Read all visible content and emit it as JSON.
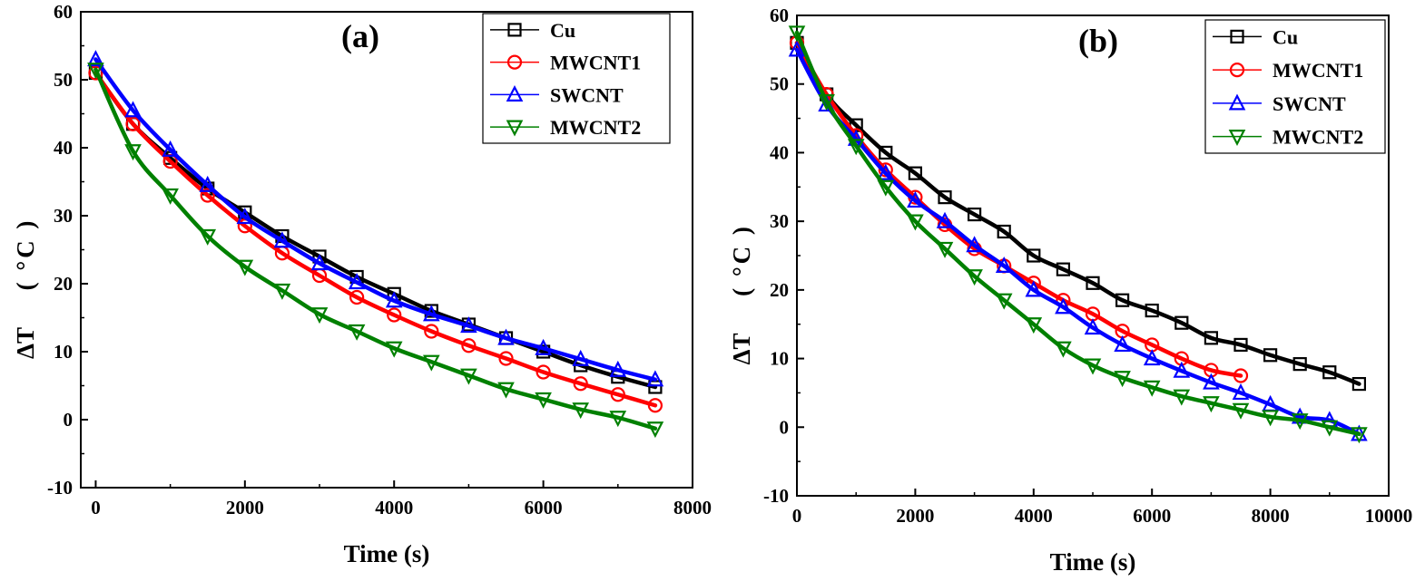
{
  "chart_data": [
    {
      "type": "line",
      "panel_label": "(a)",
      "xlabel": "Time (s)",
      "ylabel_main": "ΔT",
      "ylabel_unit": "( °C )",
      "xlim": [
        -200,
        8000
      ],
      "ylim": [
        -10,
        60
      ],
      "xticks": [
        0,
        2000,
        4000,
        6000,
        8000
      ],
      "yticks": [
        -10,
        0,
        10,
        20,
        30,
        40,
        50,
        60
      ],
      "legend_position": "top-right",
      "series": [
        {
          "name": "Cu",
          "color": "#000000",
          "marker": "square",
          "x": [
            0,
            500,
            1000,
            1500,
            2000,
            2500,
            3000,
            3500,
            4000,
            4500,
            5000,
            5500,
            6000,
            6500,
            7000,
            7500
          ],
          "y": [
            51,
            43.5,
            38.5,
            34,
            30.5,
            27,
            24,
            21,
            18.5,
            16,
            14,
            12,
            10,
            8,
            6.3,
            4.8
          ]
        },
        {
          "name": "MWCNT1",
          "color": "#ff0000",
          "marker": "circle",
          "x": [
            0,
            500,
            1000,
            1500,
            2000,
            2500,
            3000,
            3500,
            4000,
            4500,
            5000,
            5500,
            6000,
            6500,
            7000,
            7500
          ],
          "y": [
            51,
            43.5,
            38,
            33,
            28.5,
            24.5,
            21.2,
            18,
            15.4,
            13,
            10.9,
            9,
            7,
            5.3,
            3.7,
            2.1
          ]
        },
        {
          "name": "SWCNT",
          "color": "#0000ff",
          "marker": "triangle-up",
          "x": [
            0,
            500,
            1000,
            1500,
            2000,
            2500,
            3000,
            3500,
            4000,
            4500,
            5000,
            5500,
            6000,
            6500,
            7000,
            7500
          ],
          "y": [
            53,
            45.5,
            39.7,
            34.5,
            29.8,
            26.3,
            23,
            20.2,
            17.5,
            15.5,
            13.8,
            12,
            10.5,
            8.9,
            7.3,
            5.9
          ]
        },
        {
          "name": "MWCNT2",
          "color": "#008000",
          "marker": "triangle-down",
          "x": [
            0,
            500,
            1000,
            1500,
            2000,
            2500,
            3000,
            3500,
            4000,
            4500,
            5000,
            5500,
            6000,
            6500,
            7000,
            7500
          ],
          "y": [
            51.5,
            39.5,
            33,
            27,
            22.5,
            19,
            15.5,
            13,
            10.5,
            8.5,
            6.5,
            4.5,
            3,
            1.5,
            0.3,
            -1.3
          ]
        }
      ]
    },
    {
      "type": "line",
      "panel_label": "(b)",
      "xlabel": "Time  (s)",
      "ylabel_main": "ΔT",
      "ylabel_unit": "( °C )",
      "xlim": [
        0,
        10000
      ],
      "ylim": [
        -10,
        60
      ],
      "xticks": [
        0,
        2000,
        4000,
        6000,
        8000,
        10000
      ],
      "yticks": [
        -10,
        0,
        10,
        20,
        30,
        40,
        50,
        60
      ],
      "legend_position": "top-right",
      "series": [
        {
          "name": "Cu",
          "color": "#000000",
          "marker": "square",
          "x": [
            0,
            500,
            1000,
            1500,
            2000,
            2500,
            3000,
            3500,
            4000,
            4500,
            5000,
            5500,
            6000,
            6500,
            7000,
            7500,
            8000,
            8500,
            9000,
            9500
          ],
          "y": [
            56,
            48.5,
            44,
            40,
            37,
            33.5,
            31,
            28.5,
            25,
            23,
            21,
            18.5,
            17,
            15.2,
            13,
            12,
            10.5,
            9.2,
            8,
            6.3
          ]
        },
        {
          "name": "MWCNT1",
          "color": "#ff0000",
          "marker": "circle",
          "x": [
            0,
            500,
            1000,
            1500,
            2000,
            2500,
            3000,
            3500,
            4000,
            4500,
            5000,
            5500,
            6000,
            6500,
            7000,
            7500
          ],
          "y": [
            56,
            48.5,
            42.5,
            37.5,
            33.5,
            29.5,
            26,
            23.5,
            21,
            18.5,
            16.5,
            14,
            12,
            10,
            8.3,
            7.5
          ]
        },
        {
          "name": "SWCNT",
          "color": "#0000ff",
          "marker": "triangle-up",
          "x": [
            0,
            500,
            1000,
            1500,
            2000,
            2500,
            3000,
            3500,
            4000,
            4500,
            5000,
            5500,
            6000,
            6500,
            7000,
            7500,
            8000,
            8500,
            9000,
            9500
          ],
          "y": [
            55,
            47,
            42,
            37,
            33,
            30,
            26.5,
            23.5,
            20,
            17.5,
            14.5,
            12,
            10,
            8.2,
            6.5,
            5,
            3.3,
            1.5,
            1,
            -1
          ]
        },
        {
          "name": "MWCNT2",
          "color": "#008000",
          "marker": "triangle-down",
          "x": [
            0,
            500,
            1000,
            1500,
            2000,
            2500,
            3000,
            3500,
            4000,
            4500,
            5000,
            5500,
            6000,
            6500,
            7000,
            7500,
            8000,
            8500,
            9000,
            9500
          ],
          "y": [
            57.5,
            47.5,
            41,
            35,
            30,
            26,
            22,
            18.5,
            15,
            11.5,
            9,
            7.2,
            5.8,
            4.5,
            3.5,
            2.5,
            1.5,
            1,
            0,
            -1
          ]
        }
      ]
    }
  ]
}
